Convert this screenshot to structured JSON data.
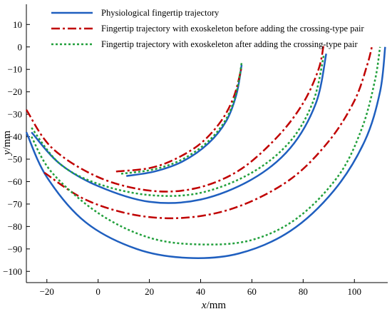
{
  "chart_data": {
    "type": "line",
    "xlabel_var": "x",
    "xlabel_unit": "/mm",
    "ylabel_var": "y",
    "ylabel_unit": "/mm",
    "xlim": [
      -28,
      113
    ],
    "ylim": [
      -105,
      19
    ],
    "xticks": [
      -20,
      0,
      20,
      40,
      60,
      80,
      100
    ],
    "yticks": [
      10,
      0,
      -10,
      -20,
      -30,
      -40,
      -50,
      -60,
      -70,
      -80,
      -90,
      -100
    ],
    "legend_position": "top-left",
    "series": [
      {
        "name": "Physiological fingertip trajectory",
        "color": "#1f5fbf",
        "dash": "solid",
        "curves": [
          {
            "x": [
              11,
              22,
              33,
              43,
              50,
              54,
              56
            ],
            "y": [
              -57.5,
              -55.5,
              -51,
              -43,
              -33,
              -21,
              -8
            ]
          },
          {
            "x": [
              -26,
              -15,
              0,
              20,
              40,
              60,
              75,
              85,
              89
            ],
            "y": [
              -38,
              -52,
              -62,
              -69,
              -68,
              -59,
              -45,
              -25,
              -3
            ]
          },
          {
            "x": [
              -28,
              -20,
              -5,
              15,
              35,
              55,
              75,
              92,
              104,
              110,
              112
            ],
            "y": [
              -38,
              -58,
              -78,
              -90,
              -94,
              -92,
              -82,
              -64,
              -42,
              -20,
              0
            ]
          }
        ]
      },
      {
        "name": "Fingertip trajectory with exoskeleton before adding the crossing-type pair",
        "color": "#c00000",
        "dash": "dashdot",
        "curves": [
          {
            "x": [
              7,
              20,
              30,
              40,
              48,
              53,
              56
            ],
            "y": [
              -55.5,
              -54,
              -50,
              -43,
              -33,
              -22,
              -9
            ]
          },
          {
            "x": [
              -28,
              -18,
              0,
              20,
              38,
              55,
              70,
              80,
              86,
              88
            ],
            "y": [
              -28,
              -45,
              -58,
              -64,
              -63,
              -55,
              -40,
              -25,
              -10,
              1
            ]
          },
          {
            "x": [
              -21,
              -5,
              15,
              35,
              55,
              75,
              90,
              100,
              105,
              107
            ],
            "y": [
              -56,
              -68,
              -75,
              -76,
              -71,
              -59,
              -42,
              -24,
              -8,
              1
            ]
          }
        ]
      },
      {
        "name": "Fingertip trajectory with exoskeleton after adding the crossing-type pair",
        "color": "#22a03c",
        "dash": "dotted",
        "curves": [
          {
            "x": [
              9,
              22,
              33,
              43,
              50,
              54,
              56
            ],
            "y": [
              -56.5,
              -54.5,
              -50,
              -42,
              -32,
              -20,
              -7
            ]
          },
          {
            "x": [
              -26,
              -15,
              0,
              20,
              40,
              60,
              75,
              84,
              88
            ],
            "y": [
              -36,
              -52,
              -61,
              -66,
              -65,
              -56,
              -42,
              -24,
              -4
            ]
          },
          {
            "x": [
              -26,
              -18,
              0,
              20,
              40,
              60,
              78,
              94,
              103,
              108,
              110
            ],
            "y": [
              -40,
              -56,
              -74,
              -85,
              -88,
              -86,
              -76,
              -57,
              -36,
              -15,
              0
            ]
          }
        ]
      }
    ]
  }
}
